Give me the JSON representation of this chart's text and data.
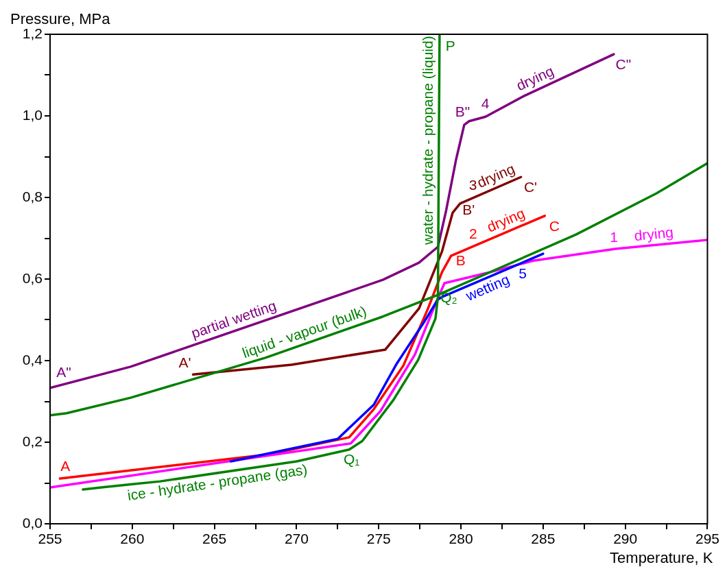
{
  "chart_data": {
    "type": "line",
    "xlabel": "Temperature, K",
    "ylabel": "Pressure, MPa",
    "xlim": [
      255,
      295
    ],
    "ylim": [
      0,
      1.2
    ],
    "xticks": [
      255,
      {
        "value": 257.5,
        "label": null
      },
      260,
      {
        "value": 262.5,
        "label": null
      },
      265,
      {
        "value": 267.5,
        "label": null
      },
      270,
      {
        "value": 272.5,
        "label": null
      },
      275,
      {
        "value": 277.5,
        "label": null
      },
      280,
      {
        "value": 282.5,
        "label": null
      },
      285,
      {
        "value": 287.5,
        "label": null
      },
      290,
      {
        "value": 292.5,
        "label": null
      },
      295
    ],
    "yticks": [
      {
        "value": 0,
        "label": "0,0"
      },
      {
        "value": 0.1,
        "label": null
      },
      {
        "value": 0.2,
        "label": "0,2"
      },
      {
        "value": 0.3,
        "label": null
      },
      {
        "value": 0.4,
        "label": "0,4"
      },
      {
        "value": 0.5,
        "label": null
      },
      {
        "value": 0.6,
        "label": "0,6"
      },
      {
        "value": 0.7,
        "label": null
      },
      {
        "value": 0.8,
        "label": "0,8"
      },
      {
        "value": 0.9,
        "label": null
      },
      {
        "value": 1.0,
        "label": "1,0"
      },
      {
        "value": 1.1,
        "label": null
      },
      {
        "value": 1.2,
        "label": "1,2"
      }
    ],
    "grid": false,
    "legend": false,
    "marker": "none",
    "line_style": "solid",
    "series": [
      {
        "type": "line",
        "color": "#008000",
        "x": [
          257.0,
          258.1,
          260.0,
          261.7,
          270.0,
          273.2,
          274.0,
          275.9,
          277.4,
          278.45,
          278.6,
          278.7
        ],
        "values": [
          0.084,
          0.089,
          0.097,
          0.104,
          0.153,
          0.182,
          0.203,
          0.304,
          0.402,
          0.503,
          0.556,
          1.2
        ]
      },
      {
        "type": "line",
        "color": "#008000",
        "x": [
          255.0,
          256.0,
          259.9,
          268.1,
          275.25,
          278.6,
          287.0,
          291.9,
          295.0
        ],
        "values": [
          0.266,
          0.271,
          0.309,
          0.407,
          0.508,
          0.561,
          0.709,
          0.81,
          0.884
        ]
      },
      {
        "type": "line",
        "color": "#0000ff",
        "x": [
          266.0,
          272.5,
          274.7,
          276.1,
          277.75,
          278.6,
          278.85,
          285.0
        ],
        "values": [
          0.153,
          0.208,
          0.292,
          0.393,
          0.494,
          0.55,
          0.556,
          0.662
        ]
      },
      {
        "type": "line",
        "color": "#ff00ff",
        "x": [
          255.0,
          273.3,
          275.1,
          277.2,
          278.45,
          279.0,
          281.6,
          284.4,
          289.4,
          295.0
        ],
        "values": [
          0.089,
          0.197,
          0.276,
          0.415,
          0.539,
          0.59,
          0.615,
          0.645,
          0.674,
          0.696
        ]
      },
      {
        "type": "line",
        "color": "#ff0000",
        "x": [
          255.6,
          268.3,
          273.2,
          274.7,
          276.5,
          278.0,
          278.85,
          279.4,
          285.1
        ],
        "values": [
          0.111,
          0.17,
          0.212,
          0.281,
          0.388,
          0.528,
          0.617,
          0.657,
          0.755
        ]
      },
      {
        "type": "line",
        "color": "#800000",
        "x": [
          263.7,
          269.7,
          275.4,
          277.45,
          278.85,
          279.5,
          279.95,
          283.65
        ],
        "values": [
          0.366,
          0.39,
          0.427,
          0.528,
          0.668,
          0.763,
          0.785,
          0.85
        ]
      },
      {
        "type": "line",
        "color": "#800080",
        "x": [
          255.0,
          259.9,
          275.25,
          277.45,
          278.6,
          279.1,
          279.7,
          280.2,
          280.5,
          281.5,
          283.85,
          289.3
        ],
        "values": [
          0.333,
          0.385,
          0.598,
          0.64,
          0.679,
          0.768,
          0.892,
          0.978,
          0.987,
          0.998,
          1.049,
          1.151
        ]
      }
    ],
    "annotations": [
      {
        "text": "A\"",
        "x": 256.0,
        "y": 0.344
      },
      {
        "text": "A'",
        "x": 263.7,
        "y": 0.366
      },
      {
        "text": "A",
        "x": 256.0,
        "y": 0.113
      },
      {
        "text": "partial wetting",
        "x": 266.4,
        "y": 0.475
      },
      {
        "text": "liquid - vapour (bulk)",
        "x": 270.7,
        "y": 0.444
      },
      {
        "text": "ice - hydrate - propane (gas)",
        "x": 265.1,
        "y": 0.124
      },
      {
        "text": "Q₁",
        "x": 273.2,
        "y": 0.182
      },
      {
        "text": "Q₂",
        "x": 278.6,
        "y": 0.556
      },
      {
        "text": "wetting",
        "x": 281.4,
        "y": 0.6
      },
      {
        "text": "5",
        "x": 283.5,
        "y": 0.636
      },
      {
        "text": "B",
        "x": 279.4,
        "y": 0.657
      },
      {
        "text": "2",
        "x": 281.0,
        "y": 0.685
      },
      {
        "text": "drying",
        "x": 283.0,
        "y": 0.719
      },
      {
        "text": "C",
        "x": 285.1,
        "y": 0.755
      },
      {
        "text": "B'",
        "x": 279.95,
        "y": 0.785
      },
      {
        "text": "3",
        "x": 281.0,
        "y": 0.803
      },
      {
        "text": "drying",
        "x": 282.4,
        "y": 0.828
      },
      {
        "text": "C'",
        "x": 283.65,
        "y": 0.85
      },
      {
        "text": "B\"",
        "x": 280.5,
        "y": 0.987
      },
      {
        "text": "4",
        "x": 281.8,
        "y": 1.005
      },
      {
        "text": "drying",
        "x": 284.8,
        "y": 1.067
      },
      {
        "text": "C\"",
        "x": 289.3,
        "y": 1.151
      },
      {
        "text": "1",
        "x": 289.4,
        "y": 0.674
      },
      {
        "text": "drying",
        "x": 291.8,
        "y": 0.683
      },
      {
        "text": "P",
        "x": 278.695,
        "y": 1.17
      },
      {
        "text": "water - hydrate - propane (liquid)",
        "x": 278.66,
        "y": 0.94
      }
    ]
  }
}
